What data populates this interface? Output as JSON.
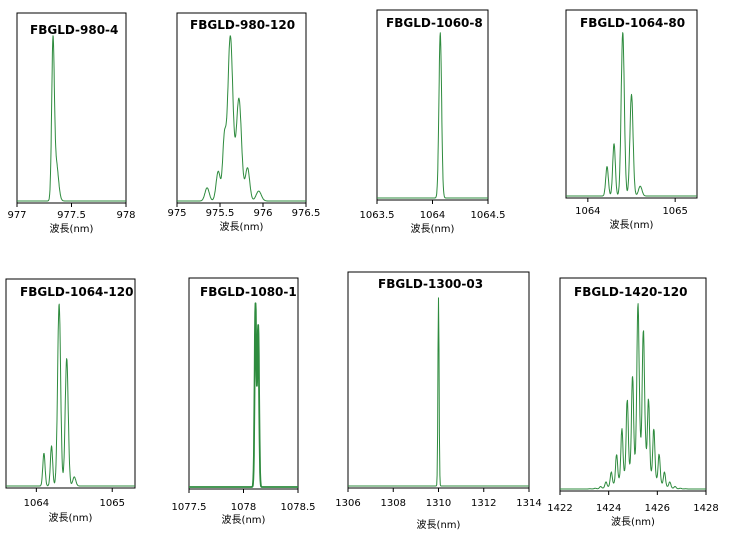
{
  "colors": {
    "line": "#2e8b3e",
    "frame": "#000000"
  },
  "chart_data": [
    {
      "type": "line",
      "title": "FBGLD-980-4",
      "xlabel": "波長(nm)",
      "ylabel": "",
      "xlim": [
        977,
        978
      ],
      "xticks": [
        "977",
        "977.5",
        "978"
      ],
      "grid": false,
      "series": [
        {
          "peaks": [
            [
              977.33,
              1.0,
              0.012
            ],
            [
              977.36,
              0.25,
              0.02
            ]
          ]
        }
      ]
    },
    {
      "type": "line",
      "title": "FBGLD-980-120",
      "xlabel": "波長(nm)",
      "ylabel": "",
      "xlim": [
        975,
        976.5
      ],
      "xticks": [
        "975",
        "975.5",
        "976",
        "976.5"
      ],
      "grid": false,
      "series": [
        {
          "peaks": [
            [
              975.35,
              0.08,
              0.025
            ],
            [
              975.48,
              0.18,
              0.025
            ],
            [
              975.55,
              0.35,
              0.02
            ],
            [
              975.62,
              1.0,
              0.03
            ],
            [
              975.72,
              0.62,
              0.03
            ],
            [
              975.82,
              0.2,
              0.025
            ],
            [
              975.95,
              0.06,
              0.03
            ]
          ]
        }
      ]
    },
    {
      "type": "line",
      "title": "FBGLD-1060-8",
      "xlabel": "波長(nm)",
      "ylabel": "",
      "xlim": [
        1063.5,
        1064.5
      ],
      "xticks": [
        "1063.5",
        "1064",
        "1064.5"
      ],
      "grid": false,
      "series": [
        {
          "peaks": [
            [
              1064.07,
              1.0,
              0.012
            ]
          ]
        }
      ]
    },
    {
      "type": "line",
      "title": "FBGLD-1064-80",
      "xlabel": "波長(nm)",
      "ylabel": "",
      "xlim": [
        1063.75,
        1065.25
      ],
      "xticks": [
        "1064",
        "1065"
      ],
      "grid": false,
      "series": [
        {
          "peaks": [
            [
              1064.22,
              0.18,
              0.015
            ],
            [
              1064.3,
              0.32,
              0.015
            ],
            [
              1064.4,
              1.0,
              0.018
            ],
            [
              1064.5,
              0.62,
              0.018
            ],
            [
              1064.6,
              0.06,
              0.02
            ]
          ]
        }
      ]
    },
    {
      "type": "line",
      "title": "FBGLD-1064-120",
      "xlabel": "波長(nm)",
      "ylabel": "",
      "xlim": [
        1063.6,
        1065.3
      ],
      "xticks": [
        "1064",
        "1065"
      ],
      "grid": false,
      "series": [
        {
          "peaks": [
            [
              1064.1,
              0.18,
              0.015
            ],
            [
              1064.2,
              0.22,
              0.015
            ],
            [
              1064.3,
              1.0,
              0.02
            ],
            [
              1064.4,
              0.7,
              0.02
            ],
            [
              1064.5,
              0.05,
              0.02
            ]
          ]
        }
      ]
    },
    {
      "type": "line",
      "title": "FBGLD-1080-1",
      "xlabel": "波長(nm)",
      "ylabel": "",
      "xlim": [
        1077.5,
        1078.5
      ],
      "xticks": [
        "1077.5",
        "1078",
        "1078.5"
      ],
      "grid": false,
      "series": [
        {
          "peaks": [
            [
              1078.11,
              1.0,
              0.008
            ],
            [
              1078.135,
              0.88,
              0.008
            ]
          ]
        }
      ]
    },
    {
      "type": "line",
      "title": "FBGLD-1300-03",
      "xlabel": "波長(nm)",
      "ylabel": "",
      "xlim": [
        1306,
        1314
      ],
      "xticks": [
        "1306",
        "1308",
        "1310",
        "1312",
        "1314"
      ],
      "grid": false,
      "series": [
        {
          "peaks": [
            [
              1310.0,
              1.0,
              0.025
            ]
          ]
        }
      ]
    },
    {
      "type": "line",
      "title": "FBGLD-1420-120",
      "xlabel": "波長(nm)",
      "ylabel": "",
      "xlim": [
        1422,
        1428
      ],
      "xticks": [
        "1422",
        "1424",
        "1426",
        "1428"
      ],
      "grid": false,
      "series": [
        {
          "envelope": [
            1425.2,
            0.7,
            0.55
          ],
          "comb": [
            1423.0,
            1427.2,
            0.22,
            0.04
          ],
          "peaks": [
            [
              1425.22,
              0.45,
              0.06
            ],
            [
              1425.45,
              0.35,
              0.06
            ]
          ]
        }
      ]
    }
  ]
}
